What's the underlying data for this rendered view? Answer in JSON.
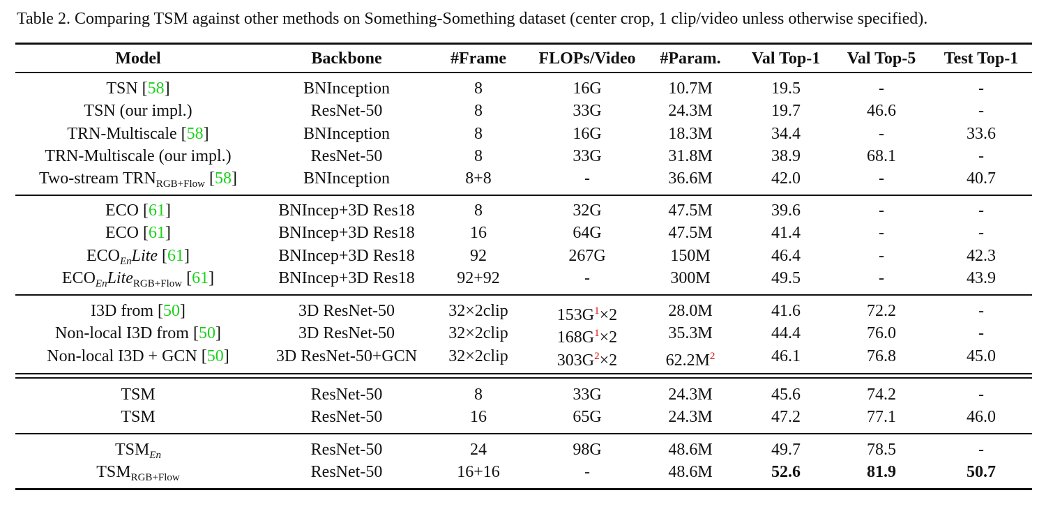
{
  "caption": "Table 2. Comparing TSM against other methods on Something-Something dataset (center crop, 1 clip/video unless otherwise specified).",
  "table": {
    "header": [
      "Model",
      "Backbone",
      "#Frame",
      "FLOPs/Video",
      "#Param.",
      "Val Top-1",
      "Val Top-5",
      "Test Top-1"
    ],
    "groups": [
      [
        [
          [
            "TSN [",
            {
              "text": "58",
              "style": "cite"
            },
            "]"
          ],
          "BNInception",
          "8",
          "16G",
          "10.7M",
          "19.5",
          "-",
          "-"
        ],
        [
          "TSN (our impl.)",
          "ResNet-50",
          "8",
          "33G",
          "24.3M",
          "19.7",
          "46.6",
          "-"
        ],
        [
          [
            "TRN-Multiscale [",
            {
              "text": "58",
              "style": "cite"
            },
            "]"
          ],
          "BNInception",
          "8",
          "16G",
          "18.3M",
          "34.4",
          "-",
          "33.6"
        ],
        [
          "TRN-Multiscale (our impl.)",
          "ResNet-50",
          "8",
          "33G",
          "31.8M",
          "38.9",
          "68.1",
          "-"
        ],
        [
          [
            "Two-stream TRN",
            {
              "text": "RGB+Flow",
              "style": "sub"
            },
            " [",
            {
              "text": "58",
              "style": "cite"
            },
            "]"
          ],
          "BNInception",
          "8+8",
          "-",
          "36.6M",
          "42.0",
          "-",
          "40.7"
        ]
      ],
      [
        [
          [
            "ECO [",
            {
              "text": "61",
              "style": "cite"
            },
            "]"
          ],
          "BNIncep+3D Res18",
          "8",
          "32G",
          "47.5M",
          "39.6",
          "-",
          "-"
        ],
        [
          [
            "ECO [",
            {
              "text": "61",
              "style": "cite"
            },
            "]"
          ],
          "BNIncep+3D Res18",
          "16",
          "64G",
          "47.5M",
          "41.4",
          "-",
          "-"
        ],
        [
          [
            "ECO",
            {
              "text": "En",
              "style": "sub-italic"
            },
            {
              "text": "Lite",
              "style": "italic"
            },
            " [",
            {
              "text": "61",
              "style": "cite"
            },
            "]"
          ],
          "BNIncep+3D Res18",
          "92",
          "267G",
          "150M",
          "46.4",
          "-",
          "42.3"
        ],
        [
          [
            "ECO",
            {
              "text": "En",
              "style": "sub-italic"
            },
            {
              "text": "Lite",
              "style": "italic"
            },
            {
              "text": "RGB+Flow",
              "style": "sub"
            },
            " [",
            {
              "text": "61",
              "style": "cite"
            },
            "]"
          ],
          "BNIncep+3D Res18",
          "92+92",
          "-",
          "300M",
          "49.5",
          "-",
          "43.9"
        ]
      ],
      [
        [
          [
            "I3D from [",
            {
              "text": "50",
              "style": "cite"
            },
            "]"
          ],
          "3D ResNet-50",
          "32×2clip",
          [
            "153G",
            {
              "text": "1",
              "style": "sup"
            },
            "×2"
          ],
          "28.0M",
          "41.6",
          "72.2",
          "-"
        ],
        [
          [
            "Non-local I3D from [",
            {
              "text": "50",
              "style": "cite"
            },
            "]"
          ],
          "3D ResNet-50",
          "32×2clip",
          [
            "168G",
            {
              "text": "1",
              "style": "sup"
            },
            "×2"
          ],
          "35.3M",
          "44.4",
          "76.0",
          "-"
        ],
        [
          [
            "Non-local I3D + GCN [",
            {
              "text": "50",
              "style": "cite"
            },
            "]"
          ],
          "3D ResNet-50+GCN",
          "32×2clip",
          [
            "303G",
            {
              "text": "2",
              "style": "sup"
            },
            "×2"
          ],
          [
            "62.2M",
            {
              "text": "2",
              "style": "sup"
            }
          ],
          "46.1",
          "76.8",
          "45.0"
        ]
      ],
      [
        [
          "TSM",
          "ResNet-50",
          "8",
          "33G",
          "24.3M",
          "45.6",
          "74.2",
          "-"
        ],
        [
          "TSM",
          "ResNet-50",
          "16",
          "65G",
          "24.3M",
          "47.2",
          "77.1",
          "46.0"
        ]
      ],
      [
        [
          [
            "TSM",
            {
              "text": "En",
              "style": "sub-italic"
            }
          ],
          "ResNet-50",
          "24",
          "98G",
          "48.6M",
          "49.7",
          "78.5",
          "-"
        ],
        [
          [
            "TSM",
            {
              "text": "RGB+Flow",
              "style": "sub"
            }
          ],
          "ResNet-50",
          "16+16",
          "-",
          "48.6M",
          [
            {
              "text": "52.6",
              "style": "bold"
            }
          ],
          [
            {
              "text": "81.9",
              "style": "bold"
            }
          ],
          [
            {
              "text": "50.7",
              "style": "bold"
            }
          ]
        ]
      ]
    ]
  }
}
